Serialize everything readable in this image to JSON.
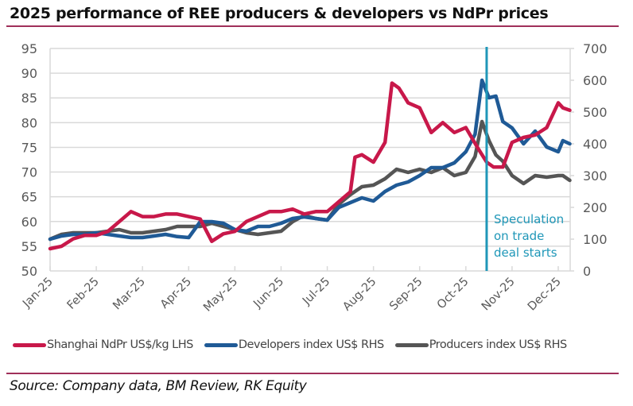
{
  "title": "2025 performance of REE producers & developers vs NdPr prices",
  "source": "Source: Company data, BM Review, RK Equity",
  "colors": {
    "ndpr": "#c8184a",
    "developers": "#1f5a96",
    "producers": "#555555",
    "annotation": "#1f97b8",
    "rule": "#a0305a",
    "grid": "#d9d9d9",
    "axis_text": "#595959"
  },
  "chart_data": {
    "type": "line",
    "title": "2025 performance of REE producers & developers vs NdPr prices",
    "xlabel": "",
    "ylabel_left": "",
    "ylabel_right": "",
    "x_unit": "months since Jan-25",
    "x_ticks": [
      "Jan-25",
      "Feb-25",
      "Mar-25",
      "Apr-25",
      "May-25",
      "Jun-25",
      "Jul-25",
      "Aug-25",
      "Sep-25",
      "Oct-25",
      "Nov-25",
      "Dec-25"
    ],
    "xlim": [
      0,
      11.25
    ],
    "ylim_left": [
      50,
      95
    ],
    "yticks_left": [
      50,
      55,
      60,
      65,
      70,
      75,
      80,
      85,
      90,
      95
    ],
    "ylim_right": [
      0,
      700
    ],
    "yticks_right": [
      0,
      100,
      200,
      300,
      400,
      500,
      600,
      700
    ],
    "grid": true,
    "legend_position": "bottom",
    "annotation": {
      "x": 9.45,
      "text_lines": [
        "Speculation",
        "on trade",
        "deal starts"
      ]
    },
    "series": [
      {
        "name": "Shanghai NdPr US$/kg LHS",
        "axis": "left",
        "x": [
          0,
          0.25,
          0.5,
          0.75,
          1.0,
          1.25,
          1.5,
          1.75,
          2.0,
          2.25,
          2.5,
          2.75,
          3.0,
          3.25,
          3.5,
          3.75,
          4.0,
          4.25,
          4.5,
          4.75,
          5.0,
          5.25,
          5.5,
          5.75,
          6.0,
          6.25,
          6.5,
          6.6,
          6.75,
          7.0,
          7.25,
          7.4,
          7.55,
          7.75,
          8.0,
          8.25,
          8.5,
          8.75,
          9.0,
          9.25,
          9.45,
          9.6,
          9.8,
          10.0,
          10.25,
          10.5,
          10.75,
          11.0,
          11.1,
          11.25
        ],
        "values": [
          54.5,
          55,
          56.5,
          57.2,
          57.2,
          58,
          60,
          62,
          61,
          61,
          61.5,
          61.5,
          61,
          60.5,
          56,
          57.5,
          58,
          60,
          61,
          62,
          62,
          62.5,
          61.5,
          62,
          62,
          64,
          66,
          73,
          73.5,
          72,
          76,
          88,
          87,
          84,
          83,
          78,
          80,
          78,
          79,
          75,
          72,
          71,
          71,
          76,
          77,
          77.5,
          79,
          84,
          83,
          82.5
        ]
      },
      {
        "name": "Developers index US$ RHS",
        "axis": "right",
        "x": [
          0,
          0.25,
          0.5,
          0.75,
          1.0,
          1.25,
          1.5,
          1.75,
          2.0,
          2.25,
          2.5,
          2.75,
          3.0,
          3.25,
          3.5,
          3.75,
          4.0,
          4.25,
          4.5,
          4.75,
          5.0,
          5.25,
          5.5,
          5.75,
          6.0,
          6.25,
          6.5,
          6.75,
          7.0,
          7.25,
          7.5,
          7.75,
          8.0,
          8.25,
          8.5,
          8.75,
          9.0,
          9.2,
          9.35,
          9.5,
          9.65,
          9.8,
          10.0,
          10.25,
          10.5,
          10.75,
          11.0,
          11.1,
          11.25
        ],
        "values": [
          100,
          110,
          115,
          115,
          120,
          115,
          110,
          105,
          105,
          110,
          115,
          108,
          105,
          155,
          155,
          150,
          130,
          125,
          140,
          140,
          150,
          165,
          170,
          165,
          160,
          200,
          215,
          230,
          220,
          250,
          270,
          280,
          300,
          325,
          325,
          340,
          375,
          430,
          600,
          545,
          550,
          470,
          450,
          400,
          440,
          390,
          375,
          410,
          400
        ]
      },
      {
        "name": "Producers index US$ RHS",
        "axis": "right",
        "x": [
          0,
          0.25,
          0.5,
          0.75,
          1.0,
          1.25,
          1.5,
          1.75,
          2.0,
          2.25,
          2.5,
          2.75,
          3.0,
          3.25,
          3.5,
          3.75,
          4.0,
          4.25,
          4.5,
          4.75,
          5.0,
          5.25,
          5.5,
          5.75,
          6.0,
          6.25,
          6.5,
          6.75,
          7.0,
          7.25,
          7.5,
          7.75,
          8.0,
          8.25,
          8.5,
          8.75,
          9.0,
          9.2,
          9.35,
          9.5,
          9.65,
          9.8,
          10.0,
          10.25,
          10.5,
          10.75,
          11.0,
          11.1,
          11.25
        ],
        "values": [
          100,
          115,
          120,
          120,
          120,
          125,
          130,
          120,
          120,
          125,
          130,
          140,
          140,
          140,
          150,
          140,
          130,
          120,
          115,
          120,
          125,
          155,
          175,
          165,
          160,
          210,
          240,
          265,
          270,
          290,
          320,
          310,
          320,
          310,
          325,
          300,
          310,
          360,
          470,
          410,
          365,
          345,
          300,
          275,
          300,
          295,
          300,
          300,
          285
        ]
      }
    ]
  }
}
